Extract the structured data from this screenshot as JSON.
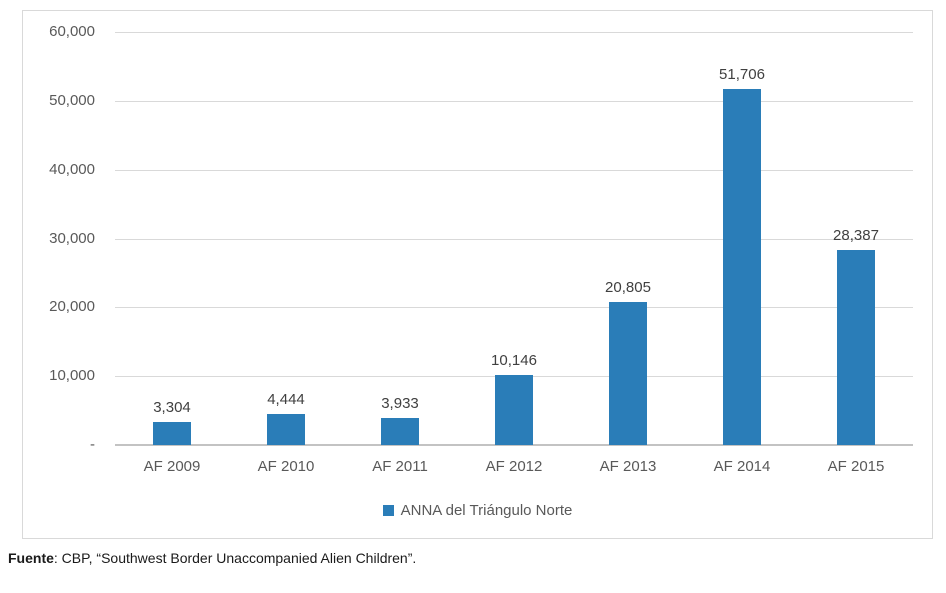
{
  "chart_data": {
    "type": "bar",
    "categories": [
      "AF 2009",
      "AF 2010",
      "AF 2011",
      "AF 2012",
      "AF 2013",
      "AF 2014",
      "AF 2015"
    ],
    "series": [
      {
        "name": "ANNA del Triángulo Norte",
        "values": [
          3304,
          4444,
          3933,
          10146,
          20805,
          51706,
          28387
        ]
      }
    ],
    "value_labels": [
      "3,304",
      "4,444",
      "3,933",
      "10,146",
      "20,805",
      "51,706",
      "28,387"
    ],
    "y_ticks": [
      {
        "value": 60000,
        "label": "60,000"
      },
      {
        "value": 50000,
        "label": "50,000"
      },
      {
        "value": 40000,
        "label": "40,000"
      },
      {
        "value": 30000,
        "label": "30,000"
      },
      {
        "value": 20000,
        "label": "20,000"
      },
      {
        "value": 10000,
        "label": "10,000"
      },
      {
        "value": 0,
        "label": "-"
      }
    ],
    "ylim": [
      0,
      60000
    ],
    "title": "",
    "xlabel": "",
    "ylabel": "",
    "grid": true,
    "legend_position": "bottom",
    "bar_color": "#2a7db8",
    "gridline_color": "#d9d9d9",
    "axis_line_color": "#c3c3c3",
    "tick_label_color": "#595959",
    "value_label_color": "#404040"
  },
  "legend": {
    "label": "ANNA del Triángulo Norte"
  },
  "source": {
    "prefix": "Fuente",
    "rest": ": CBP, “Southwest Border Unaccompanied Alien Children”."
  }
}
